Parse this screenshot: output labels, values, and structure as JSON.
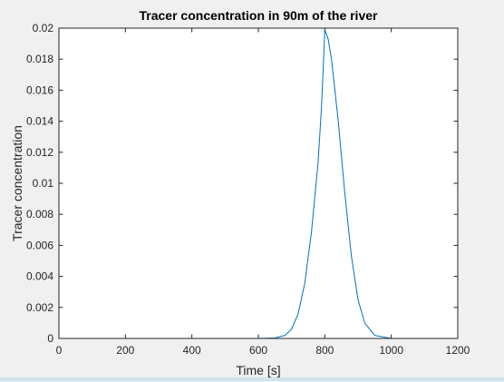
{
  "chart_data": {
    "type": "line",
    "title": "Tracer concentration in 90m of the river",
    "xlabel": "Time [s]",
    "ylabel": "Tracer concentration",
    "xlim": [
      0,
      1200
    ],
    "ylim": [
      0,
      0.02
    ],
    "xticks": [
      0,
      200,
      400,
      600,
      800,
      1000,
      1200
    ],
    "yticks": [
      0,
      0.002,
      0.004,
      0.006,
      0.008,
      0.01,
      0.012,
      0.014,
      0.016,
      0.018,
      0.02
    ],
    "ytick_labels": [
      "0",
      "0.002",
      "0.004",
      "0.006",
      "0.008",
      "0.01",
      "0.012",
      "0.014",
      "0.016",
      "0.018",
      "0.02"
    ],
    "xtick_labels": [
      "0",
      "200",
      "400",
      "600",
      "800",
      "1000",
      "1200"
    ],
    "grid": false,
    "series": [
      {
        "color": "#0072bd",
        "x": [
          0,
          600,
          650,
          680,
          700,
          720,
          740,
          760,
          780,
          790,
          800,
          810,
          820,
          840,
          860,
          880,
          900,
          920,
          950,
          1000,
          1200
        ],
        "y": [
          0,
          0,
          3e-05,
          0.0002,
          0.0006,
          0.0016,
          0.0036,
          0.0069,
          0.0114,
          0.0149,
          0.0199,
          0.0193,
          0.018,
          0.0141,
          0.0094,
          0.0053,
          0.0025,
          0.001,
          0.0002,
          0,
          0
        ]
      }
    ]
  }
}
